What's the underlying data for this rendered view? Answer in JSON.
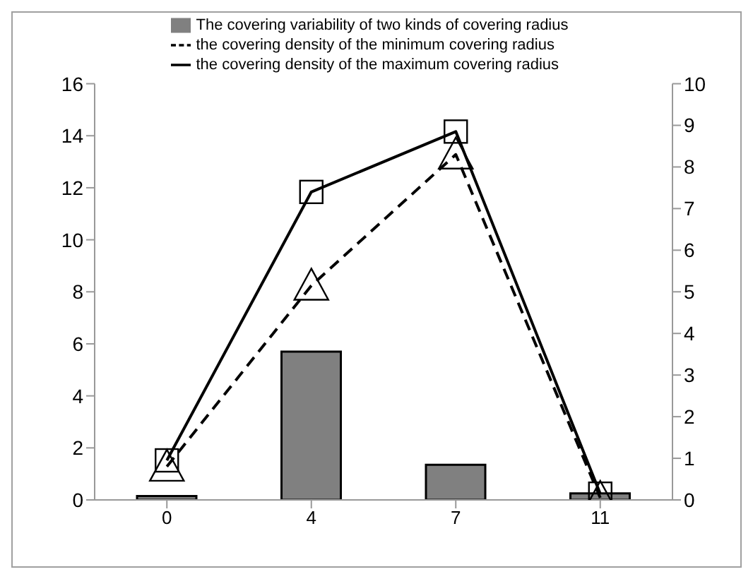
{
  "chart_data": {
    "type": "bar",
    "categories": [
      "0",
      "4",
      "7",
      "11"
    ],
    "series": [
      {
        "name": "The covering variability of two kinds of covering radius",
        "color": "#808080",
        "values": [
          0.15,
          5.7,
          1.35,
          0.25
        ]
      },
      {
        "name": "the covering density of the minimum covering radius",
        "type": "line",
        "axis": "y2",
        "color": "#000000",
        "marker": "triangle",
        "line_style": "dashed",
        "values": [
          0.8,
          5.15,
          8.3,
          0.05
        ]
      },
      {
        "name": "the covering density of the maximum covering radius",
        "type": "line",
        "axis": "y2",
        "color": "#000000",
        "marker": "square",
        "line_style": "solid",
        "values": [
          0.95,
          7.4,
          8.85,
          0.15
        ]
      }
    ],
    "ylim": [
      0,
      16
    ],
    "yticks": [
      0,
      2,
      4,
      6,
      8,
      10,
      12,
      14,
      16
    ],
    "y2lim": [
      0,
      10
    ],
    "y2ticks": [
      0,
      1,
      2,
      3,
      4,
      5,
      6,
      7,
      8,
      9,
      10
    ],
    "grid": false,
    "legend": "top"
  }
}
